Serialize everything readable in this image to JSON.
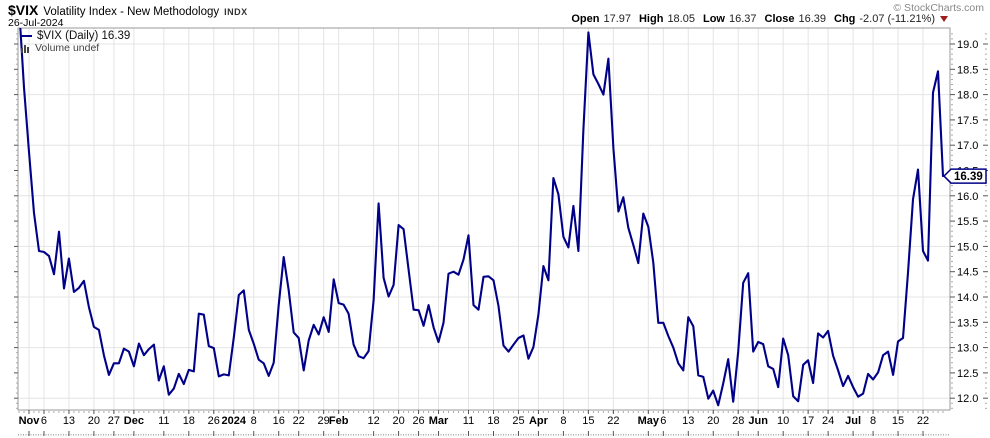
{
  "header": {
    "symbol": "$VIX",
    "title": "Volatility Index - New Methodology",
    "exchange": "INDX",
    "date": "26-Jul-2024",
    "copyright": "© StockCharts.com",
    "quote": {
      "open_label": "Open",
      "open": "17.97",
      "high_label": "High",
      "high": "18.05",
      "low_label": "Low",
      "low": "16.37",
      "close_label": "Close",
      "close": "16.39",
      "chg_label": "Chg",
      "chg": "-2.07 (-11.21%)"
    }
  },
  "legend": {
    "series": "$VIX (Daily) 16.39",
    "volume": "Volume undef"
  },
  "icons": {
    "change_direction": "down-triangle",
    "volume": "mini-bar-chart",
    "series_swatch": "blue-dash"
  },
  "colors": {
    "line": "#000088",
    "grid": "#e4e4e4",
    "plot_border": "#999999",
    "tick_major": "#555555",
    "tick_minor": "#aaaaaa",
    "axis_text": "#000000",
    "down_triangle": "#a01c1c",
    "tag_fill": "#ffffff",
    "tag_border": "#000088",
    "tag_text": "#000000"
  },
  "price_tag": "16.39",
  "chart_data": {
    "type": "line",
    "title": "$VIX Volatility Index - New Methodology (Daily)",
    "series_name": "$VIX (Daily)",
    "last_close": 16.39,
    "xlabel": "",
    "ylabel": "",
    "ylim": [
      11.78,
      19.27
    ],
    "grid": true,
    "legend_position": "top-left",
    "y_ticks": [
      12.0,
      12.5,
      13.0,
      13.5,
      14.0,
      14.5,
      15.0,
      15.5,
      16.0,
      16.5,
      17.0,
      17.5,
      18.0,
      18.5,
      19.0
    ],
    "x_ticks": [
      {
        "label": "Nov",
        "i": 2,
        "bold": true
      },
      {
        "label": "6",
        "i": 5,
        "bold": false
      },
      {
        "label": "13",
        "i": 10,
        "bold": false
      },
      {
        "label": "20",
        "i": 15,
        "bold": false
      },
      {
        "label": "27",
        "i": 19,
        "bold": false
      },
      {
        "label": "Dec",
        "i": 23,
        "bold": true
      },
      {
        "label": "11",
        "i": 29,
        "bold": false
      },
      {
        "label": "18",
        "i": 34,
        "bold": false
      },
      {
        "label": "26",
        "i": 39,
        "bold": false
      },
      {
        "label": "2024",
        "i": 43,
        "bold": true
      },
      {
        "label": "8",
        "i": 47,
        "bold": false
      },
      {
        "label": "16",
        "i": 52,
        "bold": false
      },
      {
        "label": "22",
        "i": 56,
        "bold": false
      },
      {
        "label": "29",
        "i": 61,
        "bold": false
      },
      {
        "label": "Feb",
        "i": 64,
        "bold": true
      },
      {
        "label": "12",
        "i": 71,
        "bold": false
      },
      {
        "label": "20",
        "i": 76,
        "bold": false
      },
      {
        "label": "26",
        "i": 80,
        "bold": false
      },
      {
        "label": "Mar",
        "i": 84,
        "bold": true
      },
      {
        "label": "11",
        "i": 90,
        "bold": false
      },
      {
        "label": "18",
        "i": 95,
        "bold": false
      },
      {
        "label": "25",
        "i": 100,
        "bold": false
      },
      {
        "label": "Apr",
        "i": 104,
        "bold": true
      },
      {
        "label": "8",
        "i": 109,
        "bold": false
      },
      {
        "label": "15",
        "i": 114,
        "bold": false
      },
      {
        "label": "22",
        "i": 119,
        "bold": false
      },
      {
        "label": "May",
        "i": 126,
        "bold": true
      },
      {
        "label": "6",
        "i": 129,
        "bold": false
      },
      {
        "label": "13",
        "i": 134,
        "bold": false
      },
      {
        "label": "20",
        "i": 139,
        "bold": false
      },
      {
        "label": "28",
        "i": 144,
        "bold": false
      },
      {
        "label": "Jun",
        "i": 148,
        "bold": true
      },
      {
        "label": "10",
        "i": 153,
        "bold": false
      },
      {
        "label": "17",
        "i": 158,
        "bold": false
      },
      {
        "label": "24",
        "i": 162,
        "bold": false
      },
      {
        "label": "Jul",
        "i": 167,
        "bold": true
      },
      {
        "label": "8",
        "i": 171,
        "bold": false
      },
      {
        "label": "15",
        "i": 176,
        "bold": false
      },
      {
        "label": "22",
        "i": 181,
        "bold": false
      }
    ],
    "dates": [
      "2023-10-30",
      "2023-10-31",
      "2023-11-01",
      "2023-11-02",
      "2023-11-03",
      "2023-11-06",
      "2023-11-07",
      "2023-11-08",
      "2023-11-09",
      "2023-11-10",
      "2023-11-13",
      "2023-11-14",
      "2023-11-15",
      "2023-11-16",
      "2023-11-17",
      "2023-11-20",
      "2023-11-21",
      "2023-11-22",
      "2023-11-24",
      "2023-11-27",
      "2023-11-28",
      "2023-11-29",
      "2023-11-30",
      "2023-12-01",
      "2023-12-04",
      "2023-12-05",
      "2023-12-06",
      "2023-12-07",
      "2023-12-08",
      "2023-12-11",
      "2023-12-12",
      "2023-12-13",
      "2023-12-14",
      "2023-12-15",
      "2023-12-18",
      "2023-12-19",
      "2023-12-20",
      "2023-12-21",
      "2023-12-22",
      "2023-12-26",
      "2023-12-27",
      "2023-12-28",
      "2023-12-29",
      "2024-01-02",
      "2024-01-03",
      "2024-01-04",
      "2024-01-05",
      "2024-01-08",
      "2024-01-09",
      "2024-01-10",
      "2024-01-11",
      "2024-01-12",
      "2024-01-16",
      "2024-01-17",
      "2024-01-18",
      "2024-01-19",
      "2024-01-22",
      "2024-01-23",
      "2024-01-24",
      "2024-01-25",
      "2024-01-26",
      "2024-01-29",
      "2024-01-30",
      "2024-01-31",
      "2024-02-01",
      "2024-02-02",
      "2024-02-05",
      "2024-02-06",
      "2024-02-07",
      "2024-02-08",
      "2024-02-09",
      "2024-02-12",
      "2024-02-13",
      "2024-02-14",
      "2024-02-15",
      "2024-02-16",
      "2024-02-20",
      "2024-02-21",
      "2024-02-22",
      "2024-02-23",
      "2024-02-26",
      "2024-02-27",
      "2024-02-28",
      "2024-02-29",
      "2024-03-01",
      "2024-03-04",
      "2024-03-05",
      "2024-03-06",
      "2024-03-07",
      "2024-03-08",
      "2024-03-11",
      "2024-03-12",
      "2024-03-13",
      "2024-03-14",
      "2024-03-15",
      "2024-03-18",
      "2024-03-19",
      "2024-03-20",
      "2024-03-21",
      "2024-03-22",
      "2024-03-25",
      "2024-03-26",
      "2024-03-27",
      "2024-03-28",
      "2024-04-01",
      "2024-04-02",
      "2024-04-03",
      "2024-04-04",
      "2024-04-05",
      "2024-04-08",
      "2024-04-09",
      "2024-04-10",
      "2024-04-11",
      "2024-04-12",
      "2024-04-15",
      "2024-04-16",
      "2024-04-17",
      "2024-04-18",
      "2024-04-19",
      "2024-04-22",
      "2024-04-23",
      "2024-04-24",
      "2024-04-25",
      "2024-04-26",
      "2024-04-29",
      "2024-04-30",
      "2024-05-01",
      "2024-05-02",
      "2024-05-03",
      "2024-05-06",
      "2024-05-07",
      "2024-05-08",
      "2024-05-09",
      "2024-05-10",
      "2024-05-13",
      "2024-05-14",
      "2024-05-15",
      "2024-05-16",
      "2024-05-17",
      "2024-05-20",
      "2024-05-21",
      "2024-05-22",
      "2024-05-23",
      "2024-05-24",
      "2024-05-28",
      "2024-05-29",
      "2024-05-30",
      "2024-05-31",
      "2024-06-03",
      "2024-06-04",
      "2024-06-05",
      "2024-06-06",
      "2024-06-07",
      "2024-06-10",
      "2024-06-11",
      "2024-06-12",
      "2024-06-13",
      "2024-06-14",
      "2024-06-17",
      "2024-06-18",
      "2024-06-20",
      "2024-06-21",
      "2024-06-24",
      "2024-06-25",
      "2024-06-26",
      "2024-06-27",
      "2024-06-28",
      "2024-07-01",
      "2024-07-02",
      "2024-07-03",
      "2024-07-05",
      "2024-07-08",
      "2024-07-09",
      "2024-07-10",
      "2024-07-11",
      "2024-07-12",
      "2024-07-15",
      "2024-07-16",
      "2024-07-17",
      "2024-07-18",
      "2024-07-19",
      "2024-07-22",
      "2024-07-23",
      "2024-07-24",
      "2024-07-25",
      "2024-07-26"
    ],
    "values": [
      19.75,
      18.14,
      16.87,
      15.66,
      14.91,
      14.89,
      14.81,
      14.45,
      15.29,
      14.17,
      14.76,
      14.1,
      14.18,
      14.32,
      13.8,
      13.41,
      13.35,
      12.85,
      12.46,
      12.69,
      12.69,
      12.98,
      12.92,
      12.63,
      13.08,
      12.85,
      12.97,
      13.06,
      12.35,
      12.63,
      12.07,
      12.19,
      12.48,
      12.28,
      12.56,
      12.53,
      13.67,
      13.65,
      13.03,
      12.99,
      12.43,
      12.47,
      12.45,
      13.2,
      14.04,
      14.13,
      13.35,
      13.08,
      12.76,
      12.69,
      12.44,
      12.7,
      13.84,
      14.79,
      14.13,
      13.3,
      13.19,
      12.55,
      13.14,
      13.45,
      13.26,
      13.6,
      13.31,
      14.35,
      13.88,
      13.85,
      13.67,
      13.06,
      12.83,
      12.79,
      12.93,
      13.93,
      15.85,
      14.38,
      14.01,
      14.24,
      15.42,
      15.34,
      14.54,
      13.75,
      13.74,
      13.43,
      13.84,
      13.4,
      13.11,
      13.49,
      14.46,
      14.5,
      14.44,
      14.74,
      15.22,
      13.84,
      13.75,
      14.4,
      14.41,
      14.33,
      13.82,
      13.04,
      12.92,
      13.06,
      13.19,
      13.24,
      12.78,
      13.01,
      13.65,
      14.61,
      14.33,
      16.35,
      16.03,
      15.19,
      14.98,
      15.8,
      14.91,
      17.31,
      19.23,
      18.4,
      18.21,
      18.0,
      18.71,
      16.94,
      15.69,
      15.97,
      15.37,
      15.03,
      14.67,
      15.65,
      15.39,
      14.68,
      13.49,
      13.49,
      13.23,
      13.0,
      12.69,
      12.55,
      13.6,
      13.42,
      12.45,
      12.42,
      11.99,
      12.15,
      11.86,
      12.29,
      12.77,
      11.93,
      12.92,
      14.28,
      14.47,
      12.92,
      13.11,
      13.07,
      12.63,
      12.58,
      12.22,
      13.18,
      12.85,
      12.04,
      11.94,
      12.66,
      12.75,
      12.3,
      13.28,
      13.2,
      13.33,
      12.84,
      12.55,
      12.24,
      12.44,
      12.22,
      12.03,
      12.09,
      12.48,
      12.37,
      12.51,
      12.85,
      12.92,
      12.46,
      13.12,
      13.19,
      14.48,
      15.93,
      16.52,
      14.91,
      14.72,
      18.04,
      18.46,
      16.39
    ]
  }
}
